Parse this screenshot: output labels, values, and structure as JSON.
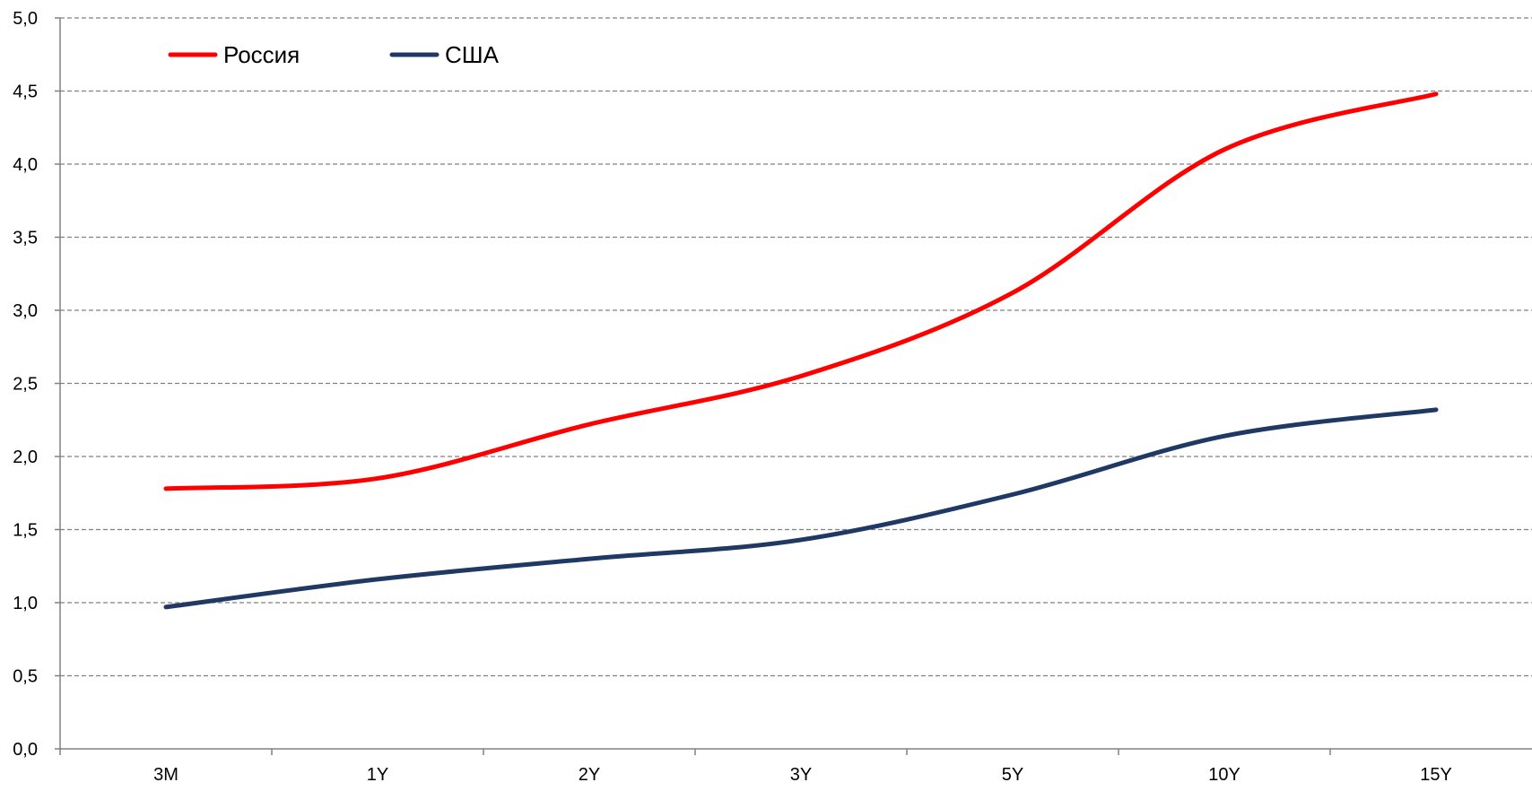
{
  "chart_data": {
    "type": "line",
    "title": "",
    "xlabel": "",
    "ylabel": "",
    "categories": [
      "3M",
      "1Y",
      "2Y",
      "3Y",
      "5Y",
      "10Y",
      "15Y"
    ],
    "ylim": [
      0,
      5
    ],
    "yticks": [
      "0,0",
      "0,5",
      "1,0",
      "1,5",
      "2,0",
      "2,5",
      "3,0",
      "3,5",
      "4,0",
      "4,5",
      "5,0"
    ],
    "grid": true,
    "legend_position": "top-left",
    "series": [
      {
        "name": "Россия",
        "color": "#ff0000",
        "values": [
          1.78,
          1.85,
          2.22,
          2.55,
          3.12,
          4.1,
          4.48
        ]
      },
      {
        "name": "США",
        "color": "#1f3864",
        "values": [
          0.97,
          1.16,
          1.3,
          1.43,
          1.74,
          2.14,
          2.32
        ]
      }
    ]
  }
}
